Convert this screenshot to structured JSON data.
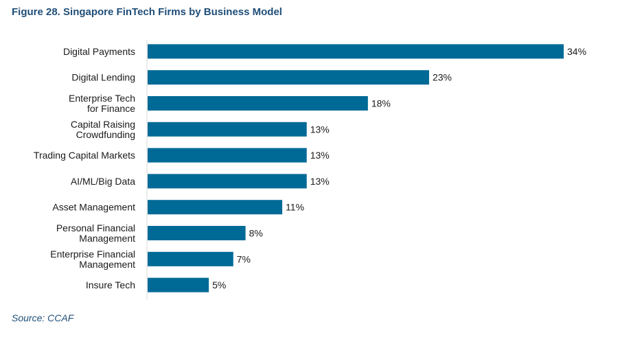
{
  "figure": {
    "title": "Figure 28. Singapore FinTech Firms by Business Model",
    "source": "Source: CCAF"
  },
  "chart_data": {
    "type": "bar",
    "orientation": "horizontal",
    "categories": [
      "Digital Payments",
      "Digital Lending",
      "Enterprise Tech\nfor Finance",
      "Capital Raising\nCrowdfunding",
      "Trading Capital Markets",
      "AI/ML/Big Data",
      "Asset Management",
      "Personal Financial\nManagement",
      "Enterprise Financial\nManagement",
      "Insure Tech"
    ],
    "values": [
      34,
      23,
      18,
      13,
      13,
      13,
      11,
      8,
      7,
      5
    ],
    "value_labels": [
      "34%",
      "23%",
      "18%",
      "13%",
      "13%",
      "13%",
      "11%",
      "8%",
      "7%",
      "5%"
    ],
    "title": "Figure 28. Singapore FinTech Firms by Business Model",
    "xlim": [
      0,
      34
    ],
    "grid": false,
    "bar_color": "#006a96"
  }
}
